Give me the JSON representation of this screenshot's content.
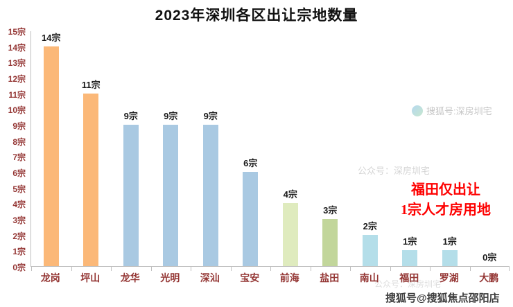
{
  "title": "2023年深圳各区出让宗地数量",
  "chart_data": {
    "type": "bar",
    "title": "2023年深圳各区出让宗地数量",
    "categories": [
      "龙岗",
      "坪山",
      "龙华",
      "光明",
      "深汕",
      "宝安",
      "前海",
      "盐田",
      "南山",
      "福田",
      "罗湖",
      "大鹏"
    ],
    "values": [
      14,
      11,
      9,
      9,
      9,
      6,
      4,
      3,
      2,
      1,
      1,
      0
    ],
    "value_labels": [
      "14宗",
      "11宗",
      "9宗",
      "9宗",
      "9宗",
      "6宗",
      "4宗",
      "3宗",
      "2宗",
      "1宗",
      "1宗",
      "0宗"
    ],
    "unit": "宗",
    "y_ticks": [
      "0宗",
      "1宗",
      "2宗",
      "3宗",
      "4宗",
      "5宗",
      "6宗",
      "7宗",
      "8宗",
      "9宗",
      "10宗",
      "11宗",
      "12宗",
      "13宗",
      "14宗",
      "15宗"
    ],
    "ylim": [
      0,
      15
    ],
    "grid": false,
    "legend": false,
    "bar_colors": [
      "#FBB878",
      "#FBB878",
      "#A9C9E2",
      "#A9C9E2",
      "#A9C9E2",
      "#A9C9E2",
      "#DFEBBE",
      "#C2D69B",
      "#B4DEE9",
      "#B4DEE9",
      "#B4DEE9",
      "#B4DEE9"
    ],
    "axis_label_color": "#943634",
    "annotation": {
      "lines": [
        "福田仅出让",
        "1宗人才房用地"
      ],
      "color": "#FE0000"
    }
  },
  "watermarks": [
    {
      "text": "搜狐号:深房圳宅",
      "position": "top-right"
    },
    {
      "text": "公众号：深房圳宅",
      "position": "middle-right"
    },
    {
      "text": "公众号：深房圳宅",
      "position": "bottom-right-faint"
    },
    {
      "text": "搜狐号@搜狐焦点邵阳店",
      "position": "bottom-right"
    }
  ]
}
